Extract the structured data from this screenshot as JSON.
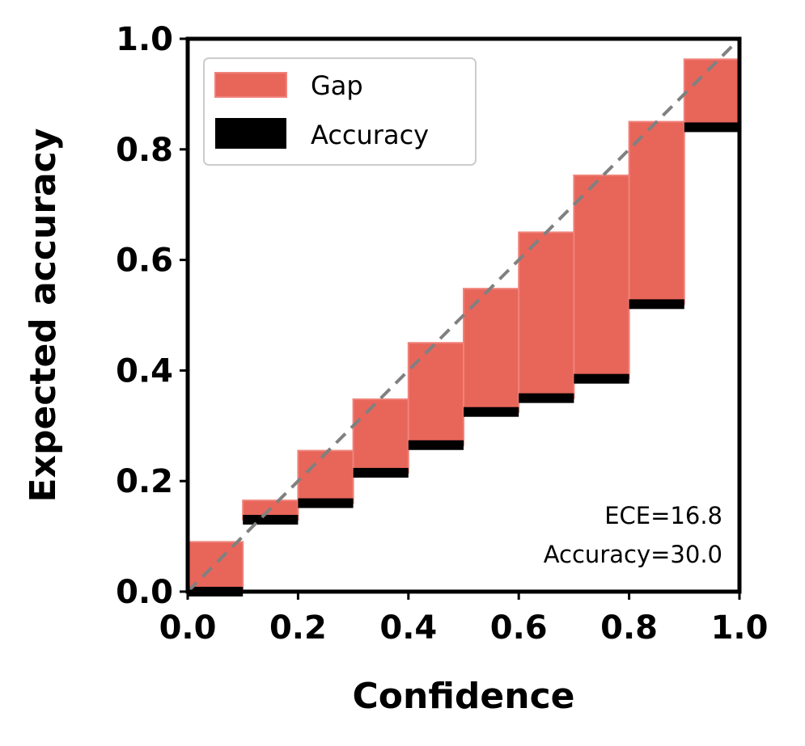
{
  "chart_data": {
    "type": "bar",
    "title": "",
    "xlabel": "Confidence",
    "ylabel": "Expected accuracy",
    "xlim": [
      0.0,
      1.0
    ],
    "ylim": [
      0.0,
      1.0
    ],
    "xticks": [
      "0.0",
      "0.2",
      "0.4",
      "0.6",
      "0.8",
      "1.0"
    ],
    "yticks": [
      "0.0",
      "0.2",
      "0.4",
      "0.6",
      "0.8",
      "1.0"
    ],
    "grid": false,
    "legend_position": "top-left",
    "bin_width": 0.1,
    "bins": [
      0.0,
      0.1,
      0.2,
      0.3,
      0.4,
      0.5,
      0.6,
      0.7,
      0.8,
      0.9
    ],
    "series": [
      {
        "name": "Accuracy",
        "color": "#000000",
        "values": [
          0.0,
          0.13,
          0.16,
          0.215,
          0.265,
          0.325,
          0.35,
          0.385,
          0.52,
          0.84
        ]
      },
      {
        "name": "Gap",
        "color": "#e8655a",
        "top_values": [
          0.09,
          0.165,
          0.255,
          0.348,
          0.45,
          0.548,
          0.65,
          0.753,
          0.85,
          0.963
        ]
      }
    ],
    "diagonal": {
      "style": "dashed",
      "color": "#808080"
    },
    "annotations": [
      "ECE=16.8",
      "Accuracy=30.0"
    ]
  }
}
